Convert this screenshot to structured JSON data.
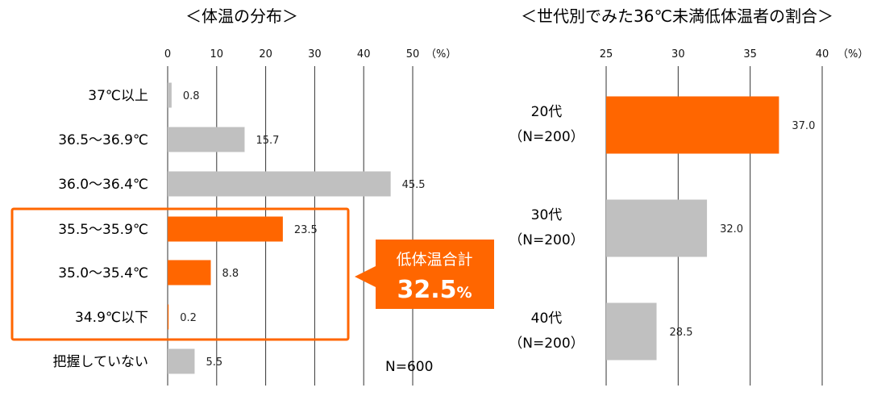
{
  "chart_data": [
    {
      "type": "bar",
      "orientation": "horizontal",
      "title": "＜体温の分布＞",
      "categories": [
        "37℃以上",
        "36.5～36.9℃",
        "36.0～36.4℃",
        "35.5～35.9℃",
        "35.0～35.4℃",
        "34.9℃以下",
        "把握していない"
      ],
      "values": [
        0.8,
        15.7,
        45.5,
        23.5,
        8.8,
        0.2,
        5.5
      ],
      "value_labels": [
        "0.8",
        "15.7",
        "45.5",
        "23.5",
        "8.8",
        "0.2",
        "5.5"
      ],
      "highlighted": [
        false,
        false,
        false,
        true,
        true,
        true,
        false
      ],
      "xlim": [
        0,
        50
      ],
      "xticks": [
        "0",
        "10",
        "20",
        "30",
        "40",
        "50"
      ],
      "unit_label": "（%）",
      "grid": true,
      "note": "N=600",
      "callout": {
        "title": "低体温合計",
        "value": "32.5",
        "unit": "%"
      }
    },
    {
      "type": "bar",
      "orientation": "horizontal",
      "title": "＜世代別でみた36℃未満低体温者の割合＞",
      "categories": [
        "20代",
        "30代",
        "40代"
      ],
      "category_sublabels": [
        "（N=200）",
        "（N=200）",
        "（N=200）"
      ],
      "values": [
        37.0,
        32.0,
        28.5
      ],
      "value_labels": [
        "37.0",
        "32.0",
        "28.5"
      ],
      "highlighted": [
        true,
        false,
        false
      ],
      "xlim": [
        25,
        40
      ],
      "xticks": [
        "25",
        "30",
        "35",
        "40"
      ],
      "unit_label": "（%）",
      "grid": true
    }
  ],
  "colors": {
    "highlight": "#ff6600",
    "normal": "#c0c0c0",
    "grid": "#333333",
    "callout": "#ff6600"
  }
}
